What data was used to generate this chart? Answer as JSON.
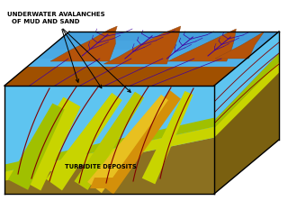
{
  "bg_color": "#ffffff",
  "mountain_color": "#b5530a",
  "water_deep": "#4ab0e8",
  "water_light": "#7dd0f0",
  "turbidite_yellow": "#c8d400",
  "turbidite_green": "#a0c000",
  "sand_orange": "#d4900a",
  "sand_yellow": "#e8c020",
  "right_wall_color": "#8B7020",
  "right_wall_light": "#a09030",
  "bottom_brown": "#7a6010",
  "channel_color": "#800000",
  "tree_color": "#4000a0",
  "box_line_color": "#000000",
  "label1": "UNDERWATER AVALANCHES\n  OF MUD AND SAND",
  "label2": "TURBIDITE DEPOSITS"
}
